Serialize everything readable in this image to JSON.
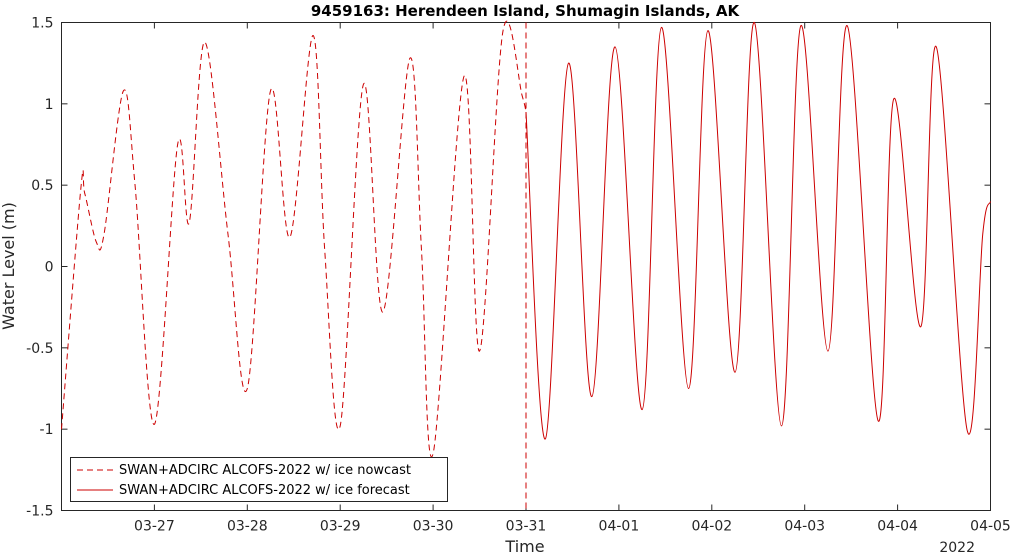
{
  "chart_data": {
    "type": "line",
    "title": "9459163: Herendeen Island, Shumagin Islands, AK",
    "xlabel": "Time",
    "ylabel": "Water Level (m)",
    "x_year_label": "2022",
    "xlim": [
      "2022-03-26T00:00",
      "2022-04-05T00:00"
    ],
    "ylim": [
      -1.5,
      1.5
    ],
    "x_ticks": [
      "03-27",
      "03-28",
      "03-29",
      "03-30",
      "03-31",
      "04-01",
      "04-02",
      "04-03",
      "04-04",
      "04-05"
    ],
    "y_ticks": [
      "-1.5",
      "-1",
      "-0.5",
      "0",
      "0.5",
      "1",
      "1.5"
    ],
    "divider_x": "2022-03-31T00:00",
    "grid": false,
    "legend_position": "bottom-left",
    "series": [
      {
        "name": "SWAN+ADCIRC ALCOFS-2022 w/ ice nowcast",
        "style": "dashed",
        "color": "#cc0000",
        "x": [
          "2022-03-26T00:00",
          "2022-03-26T05:00",
          "2022-03-26T06:00",
          "2022-03-26T09:00",
          "2022-03-26T11:00",
          "2022-03-26T16:00",
          "2022-03-26T19:00",
          "2022-03-27T00:00",
          "2022-03-27T06:00",
          "2022-03-27T09:00",
          "2022-03-27T13:00",
          "2022-03-27T19:00",
          "2022-03-28T00:00",
          "2022-03-28T06:00",
          "2022-03-28T11:00",
          "2022-03-28T17:00",
          "2022-03-28T20:00",
          "2022-03-29T00:00",
          "2022-03-29T06:00",
          "2022-03-29T11:00",
          "2022-03-29T18:00",
          "2022-03-29T21:00",
          "2022-03-30T00:00",
          "2022-03-30T08:00",
          "2022-03-30T12:00",
          "2022-03-30T18:00",
          "2022-03-30T23:00",
          "2022-03-31T00:00"
        ],
        "values": [
          -1.0,
          0.48,
          0.45,
          0.15,
          0.2,
          1.08,
          0.5,
          -0.97,
          0.75,
          0.27,
          1.38,
          0.2,
          -0.75,
          1.08,
          0.18,
          1.42,
          0.1,
          -0.98,
          1.12,
          -0.28,
          1.28,
          0.1,
          -1.15,
          1.17,
          -0.52,
          1.44,
          1.05,
          0.95
        ]
      },
      {
        "name": "SWAN+ADCIRC ALCOFS-2022 w/ ice forecast",
        "style": "solid",
        "color": "#cc0000",
        "x": [
          "2022-03-31T00:00",
          "2022-03-31T05:00",
          "2022-03-31T11:00",
          "2022-03-31T17:00",
          "2022-03-31T23:00",
          "2022-04-01T06:00",
          "2022-04-01T11:00",
          "2022-04-01T18:00",
          "2022-04-01T23:00",
          "2022-04-02T06:00",
          "2022-04-02T11:00",
          "2022-04-02T18:00",
          "2022-04-02T23:00",
          "2022-04-03T06:00",
          "2022-04-03T11:00",
          "2022-04-03T19:00",
          "2022-04-03T23:00",
          "2022-04-04T06:00",
          "2022-04-04T10:00",
          "2022-04-04T18:00",
          "2022-04-04T22:00",
          "2022-04-05T00:00"
        ],
        "values": [
          0.95,
          -1.06,
          1.25,
          -0.8,
          1.35,
          -0.88,
          1.47,
          -0.75,
          1.45,
          -0.65,
          1.5,
          -0.98,
          1.48,
          -0.52,
          1.48,
          -0.95,
          1.03,
          -0.37,
          1.35,
          -1.01,
          0.2,
          0.4
        ]
      }
    ]
  }
}
